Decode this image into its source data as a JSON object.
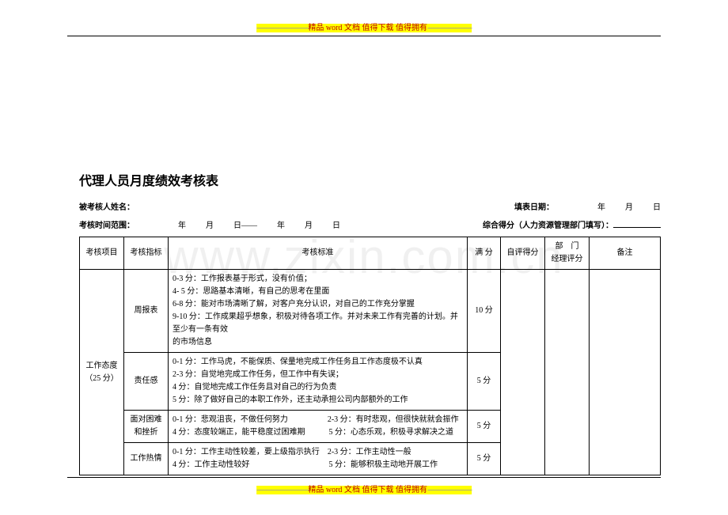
{
  "banner": {
    "dashes_left": "----------------------------",
    "dashes_right": "------------------------",
    "part1": "精品 ",
    "part_word": "word ",
    "part2": "文档  值得下载  值得拥有"
  },
  "watermark": "www.zixin.com.cn",
  "doc": {
    "title": "代理人员月度绩效考核表",
    "row1": {
      "assessee_label": "被考核人姓名：",
      "fill_date_label": "填表日期：",
      "year": "年",
      "month": "月",
      "day": "日"
    },
    "row2": {
      "range_label": "考核时间范围：",
      "year": "年",
      "month": "月",
      "day": "日",
      "dash": "——",
      "score_label": "综合得分（人力资源管理部门填写）："
    }
  },
  "table": {
    "headers": {
      "c1": "考核项目",
      "c2": "考核指标",
      "c3": "考核标准",
      "c4": "满 分",
      "c5": "自评得分",
      "c6": "部　门\n经理评分",
      "c7": "备注"
    },
    "group": {
      "name": "工作态度",
      "weight": "（25 分）"
    },
    "rows": [
      {
        "metric": "周报表",
        "criteria": "0-3 分：工作报表基于形式，没有价值；\n4- 5 分：思路基本清晰，有自己的思考在里面\n6-8 分：能对市场清晰了解，对客户充分认识，对自己的工作充分掌握\n9-10 分：工作成果超乎想象，积极对待各项工作。并对未来工作有完善的计划。并至少有一条有效\n的市场信息",
        "full": "10 分"
      },
      {
        "metric": "责任感",
        "criteria": "0-1 分：工作马虎，不能保质、保量地完成工作任务且工作态度极不认真\n2-3 分：自觉地完成工作任务，但工作中有失误；\n4 分：自觉地完成工作任务且对自己的行为负责\n5 分：除了做好自己的本职工作外，还主动承担公司内部额外的工作",
        "full": "5 分"
      },
      {
        "metric": "面对困难\n和挫折",
        "criteria": "0-1 分：悲观沮丧，不做任何努力　　　　　2-3 分：有时悲观，但很快就就会振作\n4 分：态度较端正，能平稳度过困难期　　　5 分：心态乐观，积极寻求解决之道",
        "full": "5 分"
      },
      {
        "metric": "工作热情",
        "criteria": "0-1 分：工作主动性较差，要上级指示执行　2-3 分：工作主动性一般\n4 分：工作主动性较好　　　　　　　　　　5 分：能够积极主动地开展工作",
        "full": "5 分"
      }
    ]
  }
}
